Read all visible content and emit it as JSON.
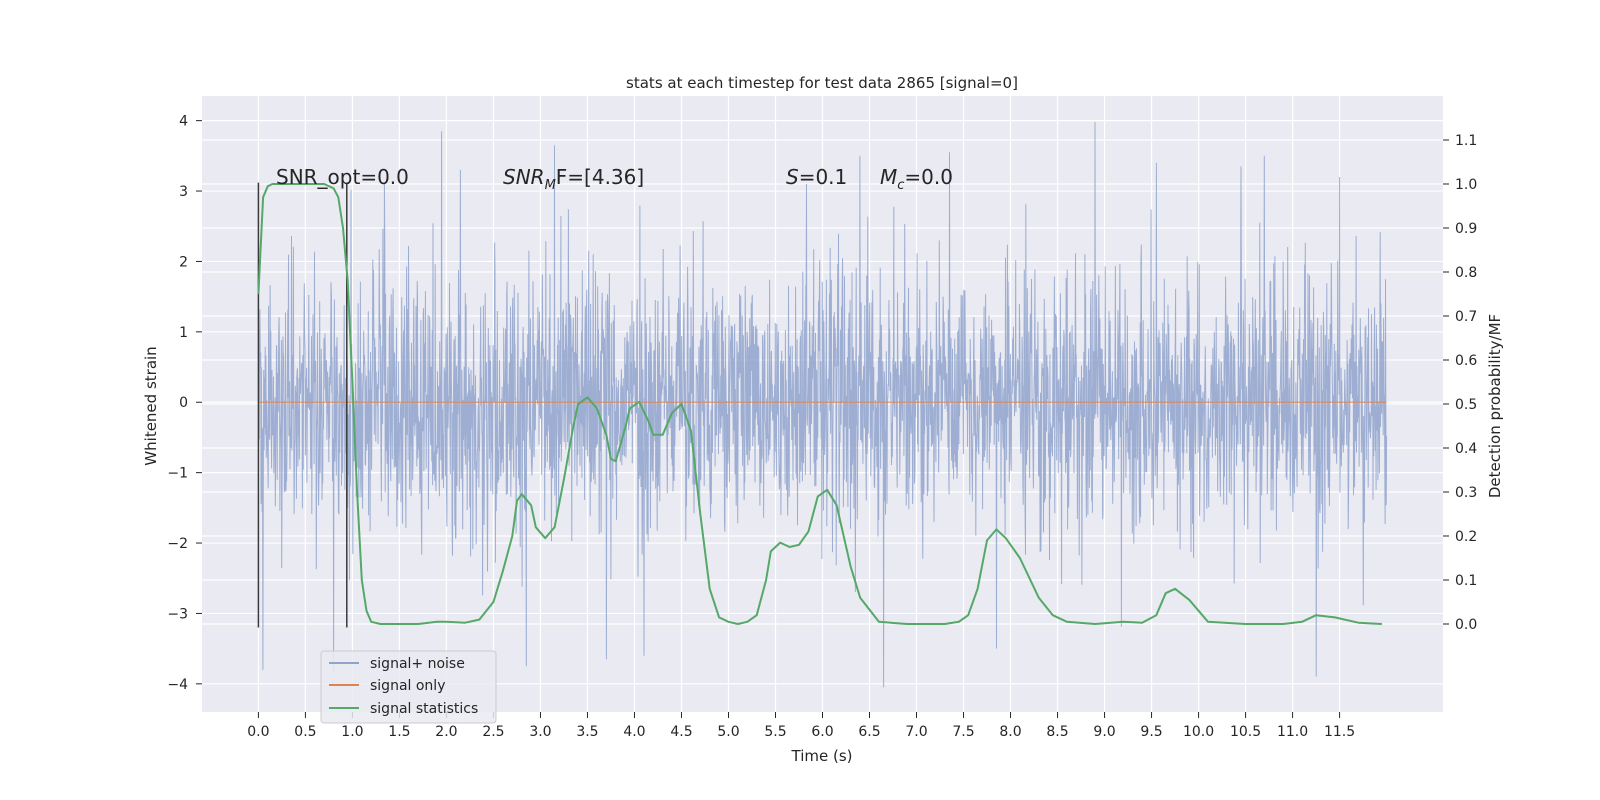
{
  "chart_data": {
    "type": "line",
    "title": "stats at each timestep for test data 2865 [signal=0]",
    "xlabel": "Time (s)",
    "ylabel_left": "Whitened strain",
    "ylabel_right": "Detection probability/MF",
    "xlim": [
      -0.6,
      12.6
    ],
    "ylim_left": [
      -4.4,
      4.35
    ],
    "ylim_right": [
      -0.2,
      1.2
    ],
    "x_ticks": [
      "0.0",
      "0.5",
      "1.0",
      "1.5",
      "2.0",
      "2.5",
      "3.0",
      "3.5",
      "4.0",
      "4.5",
      "5.0",
      "5.5",
      "6.0",
      "6.5",
      "7.0",
      "7.5",
      "8.0",
      "8.5",
      "9.0",
      "9.5",
      "10.0",
      "10.5",
      "11.0",
      "11.5"
    ],
    "y_ticks_left": [
      "4",
      "3",
      "2",
      "1",
      "0",
      "−1",
      "−2",
      "−3",
      "−4"
    ],
    "y_ticks_right": [
      "1.1",
      "1.0",
      "0.9",
      "0.8",
      "0.7",
      "0.6",
      "0.5",
      "0.4",
      "0.3",
      "0.2",
      "0.1",
      "0.0"
    ],
    "grid": true,
    "legend_position": "lower-left",
    "series": [
      {
        "name": "signal+ noise",
        "color": "#8fa3cd",
        "axis": "left",
        "x_range": [
          0.0,
          12.0
        ],
        "envelope": {
          "typical_low": -2.0,
          "typical_high": 2.0,
          "peaks_high": [
            [
              1.95,
              3.85
            ],
            [
              2.15,
              3.3
            ],
            [
              3.15,
              3.65
            ],
            [
              6.4,
              3.5
            ],
            [
              7.35,
              3.55
            ],
            [
              8.9,
              3.98
            ],
            [
              9.55,
              3.4
            ],
            [
              10.45,
              3.35
            ],
            [
              10.7,
              3.5
            ],
            [
              11.5,
              3.2
            ]
          ],
          "peaks_low": [
            [
              0.05,
              -3.8
            ],
            [
              0.8,
              -3.85
            ],
            [
              2.85,
              -3.75
            ],
            [
              3.7,
              -3.65
            ],
            [
              4.1,
              -3.6
            ],
            [
              6.65,
              -4.05
            ],
            [
              7.85,
              -3.5
            ],
            [
              11.25,
              -3.9
            ]
          ]
        }
      },
      {
        "name": "signal only",
        "color": "#dd8452",
        "axis": "left",
        "x": [
          0.0,
          12.0
        ],
        "y": [
          0.0,
          0.0
        ]
      },
      {
        "name": "signal statistics",
        "color": "#55a868",
        "axis": "right",
        "x": [
          0.0,
          0.05,
          0.1,
          0.15,
          0.2,
          0.3,
          0.5,
          0.7,
          0.8,
          0.85,
          0.9,
          0.95,
          1.0,
          1.05,
          1.1,
          1.15,
          1.2,
          1.3,
          1.5,
          1.7,
          1.9,
          2.0,
          2.2,
          2.35,
          2.5,
          2.6,
          2.7,
          2.75,
          2.8,
          2.9,
          2.95,
          3.05,
          3.15,
          3.25,
          3.35,
          3.4,
          3.5,
          3.6,
          3.7,
          3.75,
          3.8,
          3.9,
          3.95,
          4.05,
          4.15,
          4.2,
          4.3,
          4.4,
          4.5,
          4.6,
          4.7,
          4.8,
          4.9,
          5.0,
          5.1,
          5.2,
          5.3,
          5.4,
          5.45,
          5.55,
          5.65,
          5.75,
          5.85,
          5.95,
          6.05,
          6.15,
          6.3,
          6.4,
          6.6,
          6.9,
          7.1,
          7.3,
          7.45,
          7.55,
          7.65,
          7.75,
          7.85,
          7.95,
          8.1,
          8.3,
          8.45,
          8.6,
          8.9,
          9.2,
          9.4,
          9.55,
          9.65,
          9.75,
          9.9,
          10.1,
          10.5,
          10.9,
          11.1,
          11.25,
          11.45,
          11.7,
          11.95
        ],
        "y": [
          0.75,
          0.97,
          0.995,
          1.0,
          1.0,
          1.0,
          1.0,
          1.0,
          0.99,
          0.97,
          0.9,
          0.78,
          0.55,
          0.3,
          0.1,
          0.03,
          0.005,
          0.0,
          0.0,
          0.0,
          0.005,
          0.005,
          0.003,
          0.01,
          0.05,
          0.12,
          0.2,
          0.28,
          0.295,
          0.27,
          0.22,
          0.195,
          0.22,
          0.33,
          0.45,
          0.5,
          0.515,
          0.49,
          0.43,
          0.375,
          0.37,
          0.445,
          0.49,
          0.505,
          0.46,
          0.43,
          0.43,
          0.48,
          0.5,
          0.44,
          0.25,
          0.08,
          0.015,
          0.005,
          0.0,
          0.005,
          0.02,
          0.1,
          0.165,
          0.185,
          0.175,
          0.18,
          0.21,
          0.29,
          0.305,
          0.27,
          0.13,
          0.06,
          0.005,
          0.0,
          0.0,
          0.0,
          0.005,
          0.02,
          0.08,
          0.19,
          0.215,
          0.195,
          0.15,
          0.06,
          0.02,
          0.005,
          0.0,
          0.005,
          0.003,
          0.02,
          0.07,
          0.08,
          0.055,
          0.005,
          0.0,
          0.0,
          0.005,
          0.02,
          0.015,
          0.003,
          0.0
        ]
      }
    ],
    "vertical_lines": [
      0.0,
      0.94
    ],
    "annotations": {
      "snr_opt": "SNR_opt=0.0",
      "snr_mf_main": "SNR",
      "snr_mf_sub": "M",
      "snr_mf_tail": "F=[4.36]",
      "s_main": "S",
      "s_tail": "=0.1",
      "mc_main": "M",
      "mc_sub": "c",
      "mc_tail": "=0.0"
    }
  }
}
